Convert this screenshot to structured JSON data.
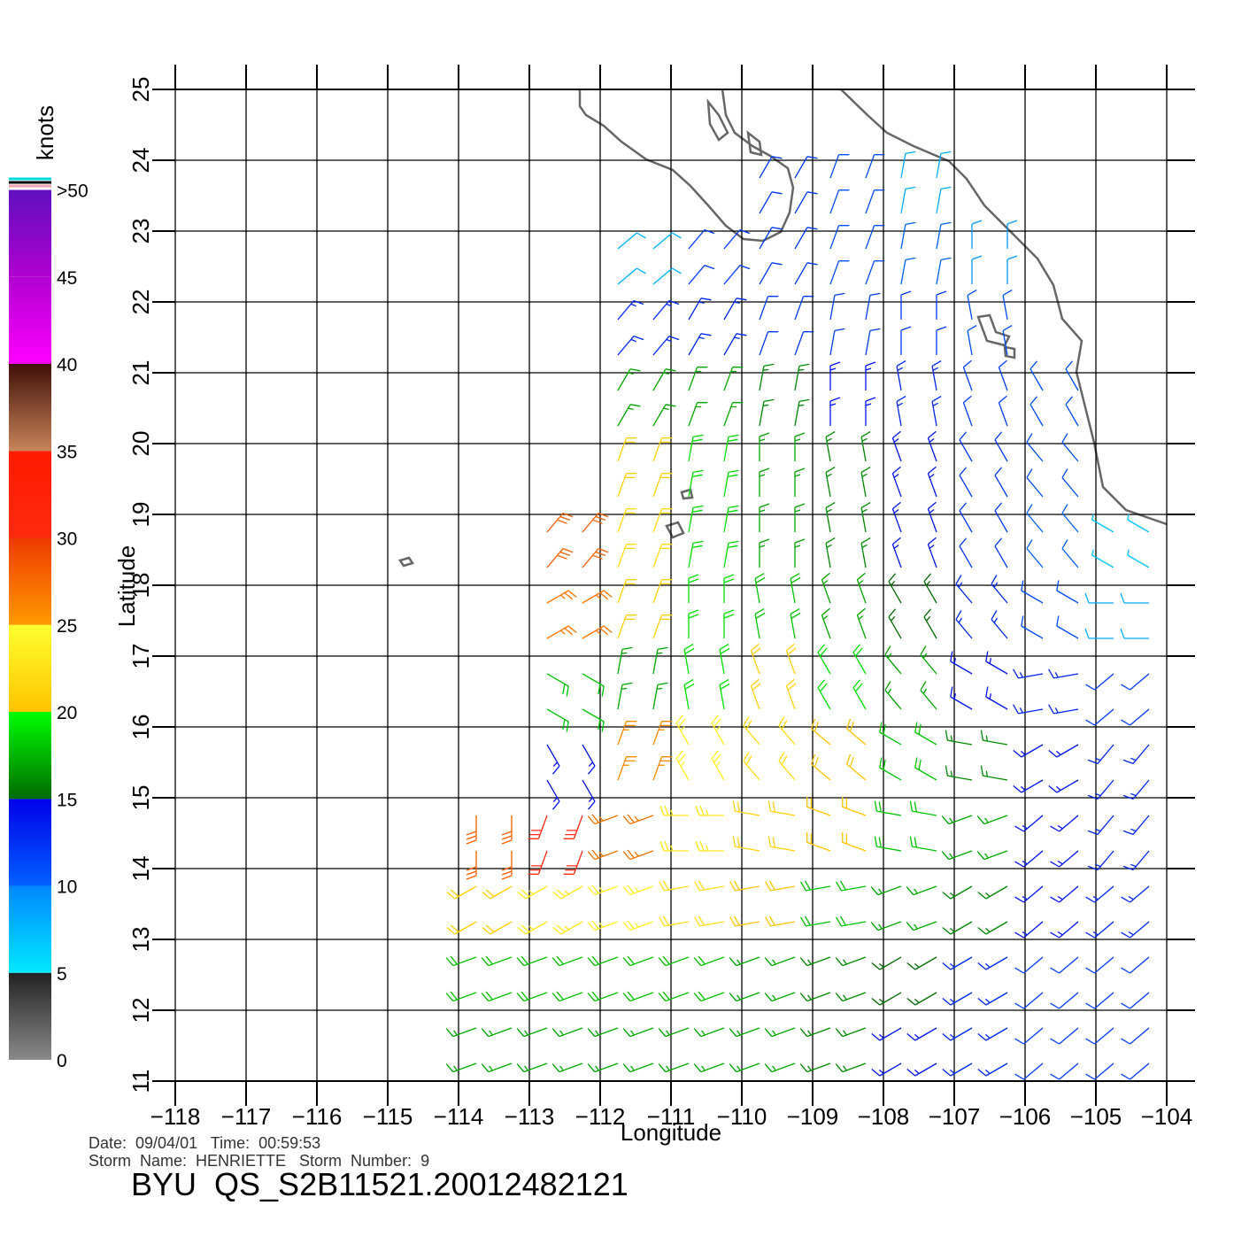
{
  "map": {
    "xlim": [
      -118,
      -104
    ],
    "ylim": [
      11,
      25
    ],
    "xticks": [
      {
        "value": -118,
        "label": "−118"
      },
      {
        "value": -117,
        "label": "−117"
      },
      {
        "value": -116,
        "label": "−116"
      },
      {
        "value": -115,
        "label": "−115"
      },
      {
        "value": -114,
        "label": "−114"
      },
      {
        "value": -113,
        "label": "−113"
      },
      {
        "value": -112,
        "label": "−112"
      },
      {
        "value": -111,
        "label": "−111"
      },
      {
        "value": -110,
        "label": "−110"
      },
      {
        "value": -109,
        "label": "−109"
      },
      {
        "value": -108,
        "label": "−108"
      },
      {
        "value": -107,
        "label": "−107"
      },
      {
        "value": -106,
        "label": "−106"
      },
      {
        "value": -105,
        "label": "−105"
      },
      {
        "value": -104,
        "label": "−104"
      }
    ],
    "yticks": [
      11,
      12,
      13,
      14,
      15,
      16,
      17,
      18,
      19,
      20,
      21,
      22,
      23,
      24,
      25
    ],
    "x_label": "Longitude",
    "y_label": "Latitude",
    "grid": true
  },
  "wind_field": {
    "lats": [
      11.5,
      12.5,
      13.5,
      14.5,
      15.5,
      16.5,
      17.5,
      18.5,
      19.5,
      20.5,
      21.5,
      22.5,
      23.5
    ],
    "lons": [
      -113.5,
      -112.5,
      -111.5,
      -110.5,
      -109.5,
      -108.5,
      -107.5,
      -106.5,
      -105.5,
      -104.5
    ],
    "speed": [
      [
        17,
        17,
        17,
        17,
        17,
        16,
        14,
        13,
        12,
        12
      ],
      [
        18,
        18,
        18,
        18,
        17,
        16,
        15,
        13,
        12,
        12
      ],
      [
        21,
        23,
        24,
        22,
        20,
        18,
        17,
        16,
        14,
        13
      ],
      [
        28,
        30,
        27,
        23,
        21,
        20,
        18,
        17,
        14,
        13
      ],
      [
        null,
        14,
        26,
        24,
        22,
        20,
        18,
        16,
        14,
        13
      ],
      [
        null,
        18,
        17,
        19,
        21,
        19,
        17,
        14,
        13,
        12
      ],
      [
        null,
        27,
        21,
        19,
        18,
        17,
        15,
        13,
        11,
        8
      ],
      [
        null,
        28,
        22,
        19,
        17,
        16,
        14,
        12,
        10,
        7
      ],
      [
        null,
        null,
        21,
        19,
        17,
        16,
        14,
        12,
        11,
        null
      ],
      [
        null,
        null,
        17,
        17,
        16,
        14,
        13,
        12,
        11,
        null
      ],
      [
        null,
        null,
        13,
        13,
        12,
        12,
        12,
        11,
        null,
        null
      ],
      [
        null,
        null,
        8,
        12,
        12,
        11,
        10,
        9,
        null,
        null
      ],
      [
        null,
        null,
        null,
        null,
        12,
        11,
        8,
        null,
        null,
        null
      ]
    ],
    "direction": [
      [
        250,
        250,
        250,
        250,
        250,
        250,
        240,
        240,
        230,
        230
      ],
      [
        250,
        250,
        250,
        250,
        250,
        250,
        240,
        240,
        230,
        230
      ],
      [
        240,
        240,
        250,
        260,
        260,
        260,
        250,
        240,
        230,
        230
      ],
      [
        180,
        200,
        250,
        270,
        280,
        290,
        280,
        250,
        230,
        220
      ],
      [
        null,
        150,
        20,
        330,
        320,
        310,
        300,
        280,
        240,
        220
      ],
      [
        null,
        120,
        10,
        350,
        340,
        330,
        320,
        300,
        260,
        230
      ],
      [
        null,
        60,
        20,
        0,
        350,
        340,
        330,
        320,
        300,
        270
      ],
      [
        null,
        40,
        20,
        10,
        0,
        350,
        340,
        330,
        320,
        300
      ],
      [
        null,
        null,
        20,
        10,
        0,
        350,
        340,
        330,
        320,
        null
      ],
      [
        null,
        null,
        30,
        20,
        10,
        0,
        350,
        340,
        330,
        null
      ],
      [
        null,
        null,
        40,
        30,
        20,
        10,
        0,
        350,
        null,
        null
      ],
      [
        null,
        null,
        50,
        40,
        30,
        20,
        10,
        0,
        null,
        null
      ],
      [
        null,
        null,
        null,
        null,
        30,
        20,
        10,
        null,
        null,
        null
      ]
    ]
  },
  "colorbar": {
    "title": "knots",
    "ticks": [
      0,
      5,
      10,
      15,
      20,
      25,
      30,
      35,
      40,
      45,
      {
        "value": 50,
        "label": ">50"
      }
    ],
    "colors": [
      [
        "#8a8a8a",
        "#222222"
      ],
      [
        "#00e8ff",
        "#0088ff"
      ],
      [
        "#0060ff",
        "#0000e8"
      ],
      [
        "#006a00",
        "#00ff00"
      ],
      [
        "#ffc400",
        "#ffff30"
      ],
      [
        "#ff9a00",
        "#ee3a00"
      ],
      [
        "#ff2a10",
        "#ff1a00"
      ],
      [
        "#c8845a",
        "#401008"
      ],
      [
        "#ff00ff",
        "#b000d0"
      ],
      [
        "#b000d0",
        "#6010c0"
      ]
    ]
  },
  "footer": {
    "date_time": "Date:  09/04/01   Time:  00:59:53",
    "storm": "Storm  Name:  HENRIETTE   Storm  Number:  9",
    "product": "BYU  QS_S2B11521.20012482121"
  }
}
